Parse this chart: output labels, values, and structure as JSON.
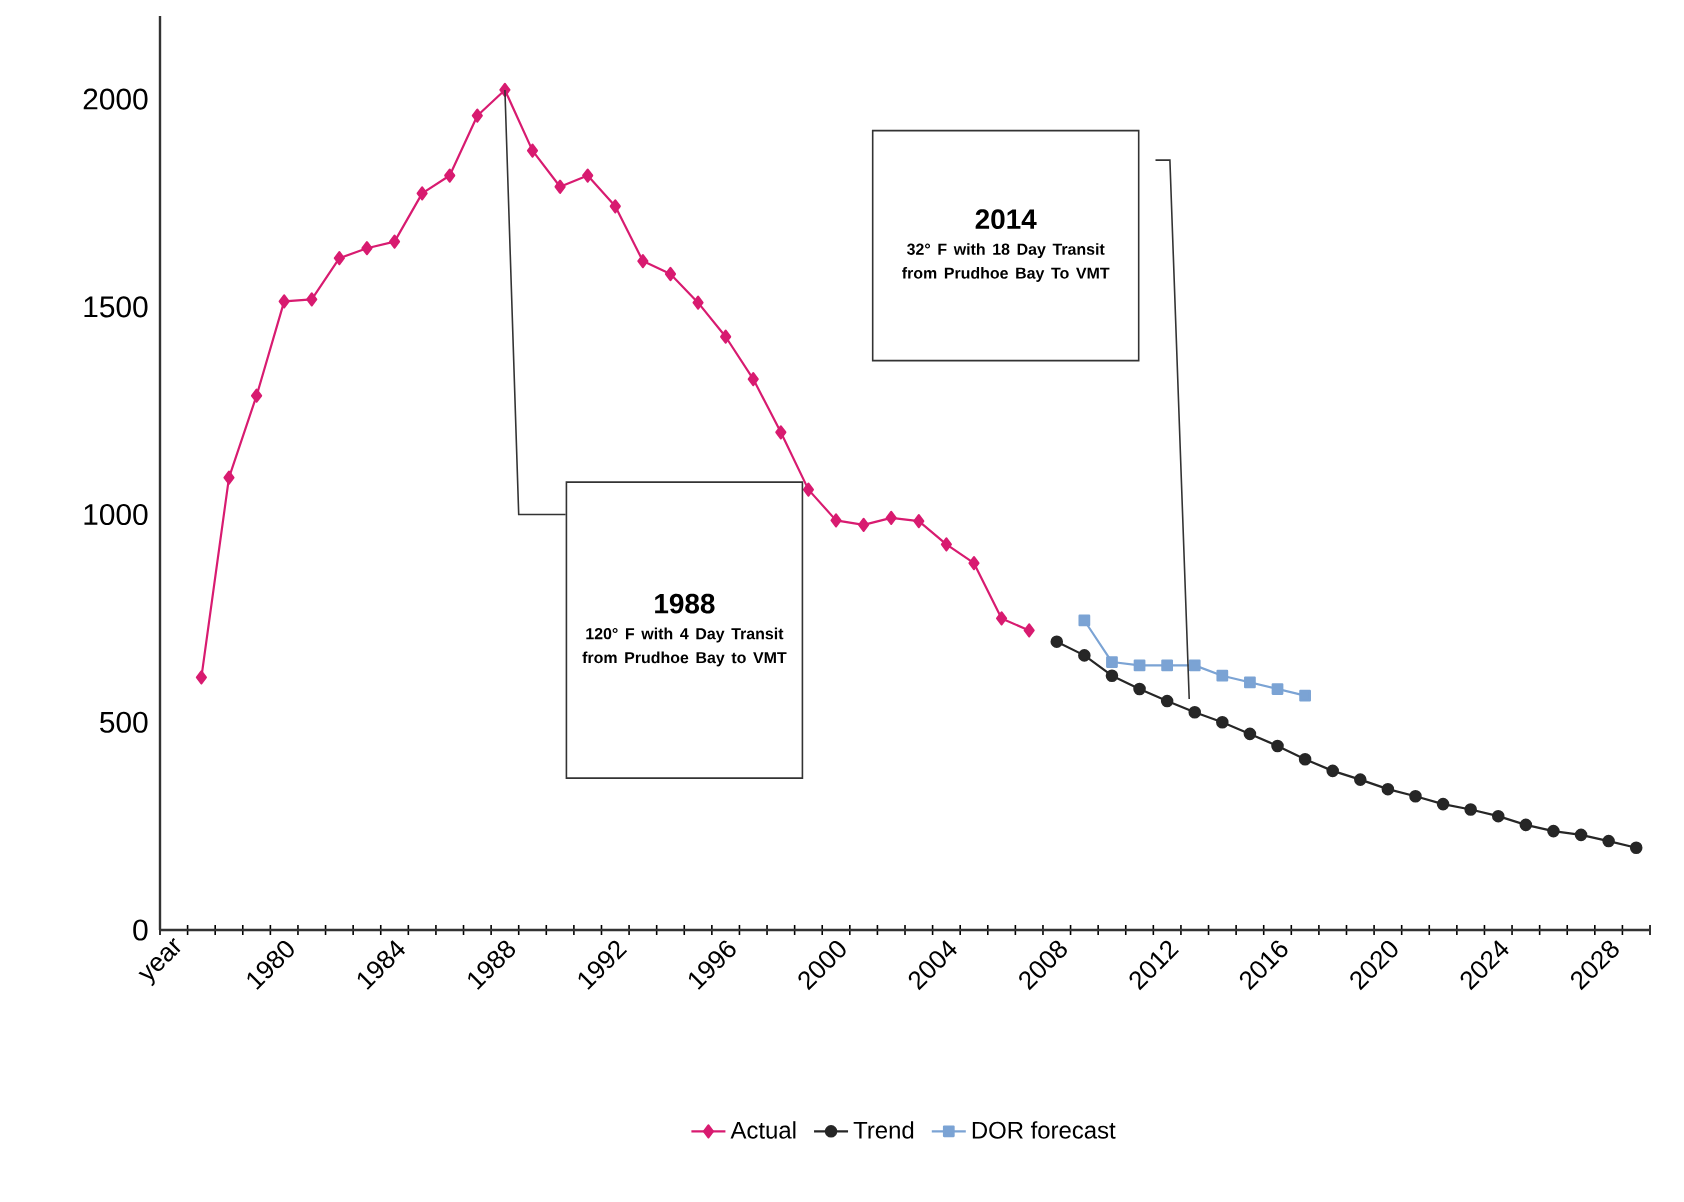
{
  "chart_data": {
    "type": "line",
    "categories": [
      "year",
      null,
      null,
      null,
      "1980",
      null,
      null,
      null,
      "1984",
      null,
      null,
      null,
      "1988",
      null,
      null,
      null,
      "1992",
      null,
      null,
      null,
      "1996",
      null,
      null,
      null,
      "2000",
      null,
      null,
      null,
      "2004",
      null,
      null,
      null,
      "2008",
      null,
      null,
      null,
      "2012",
      null,
      null,
      null,
      "2016",
      null,
      null,
      null,
      "2020",
      null,
      null,
      null,
      "2024",
      null,
      null,
      null,
      "2028",
      null
    ],
    "series": [
      {
        "name": "Actual",
        "color": "#d81b70",
        "marker": "diamond",
        "values": [
          null,
          608,
          1089,
          1286,
          1513,
          1518,
          1617,
          1641,
          1657,
          1773,
          1816,
          1960,
          2022,
          1876,
          1789,
          1816,
          1742,
          1610,
          1579,
          1510,
          1428,
          1326,
          1198,
          1060,
          986,
          975,
          992,
          984,
          928,
          883,
          750,
          721,
          null,
          null,
          null,
          null,
          null,
          null,
          null,
          null,
          null,
          null,
          null,
          null,
          null,
          null,
          null,
          null,
          null,
          null,
          null,
          null,
          null,
          null
        ]
      },
      {
        "name": "Trend",
        "color": "#262626",
        "marker": "circle",
        "values": [
          null,
          null,
          null,
          null,
          null,
          null,
          null,
          null,
          null,
          null,
          null,
          null,
          null,
          null,
          null,
          null,
          null,
          null,
          null,
          null,
          null,
          null,
          null,
          null,
          null,
          null,
          null,
          null,
          null,
          null,
          null,
          null,
          694,
          661,
          612,
          580,
          551,
          524,
          500,
          472,
          443,
          411,
          383,
          362,
          339,
          322,
          303,
          290,
          274,
          253,
          238,
          229,
          214,
          198
        ]
      },
      {
        "name": "DOR forecast",
        "color": "#7ba3d4",
        "marker": "square",
        "values": [
          null,
          null,
          null,
          null,
          null,
          null,
          null,
          null,
          null,
          null,
          null,
          null,
          null,
          null,
          null,
          null,
          null,
          null,
          null,
          null,
          null,
          null,
          null,
          null,
          null,
          null,
          null,
          null,
          null,
          null,
          null,
          null,
          null,
          745,
          645,
          637,
          637,
          637,
          612,
          596,
          580,
          564,
          null,
          null,
          null,
          null,
          null,
          null,
          null,
          null,
          null,
          null,
          null,
          null
        ]
      }
    ],
    "ylim": [
      0,
      2200
    ],
    "yticks": [
      0,
      500,
      1000,
      1500,
      2000
    ],
    "legend": "bottom",
    "annotations": [
      "1988",
      "120° F with 4 Day Transit from Prudhoe Bay to VMT",
      "2014",
      "32° F with 18 Day Transit from Prudhoe Bay To VMT"
    ]
  }
}
